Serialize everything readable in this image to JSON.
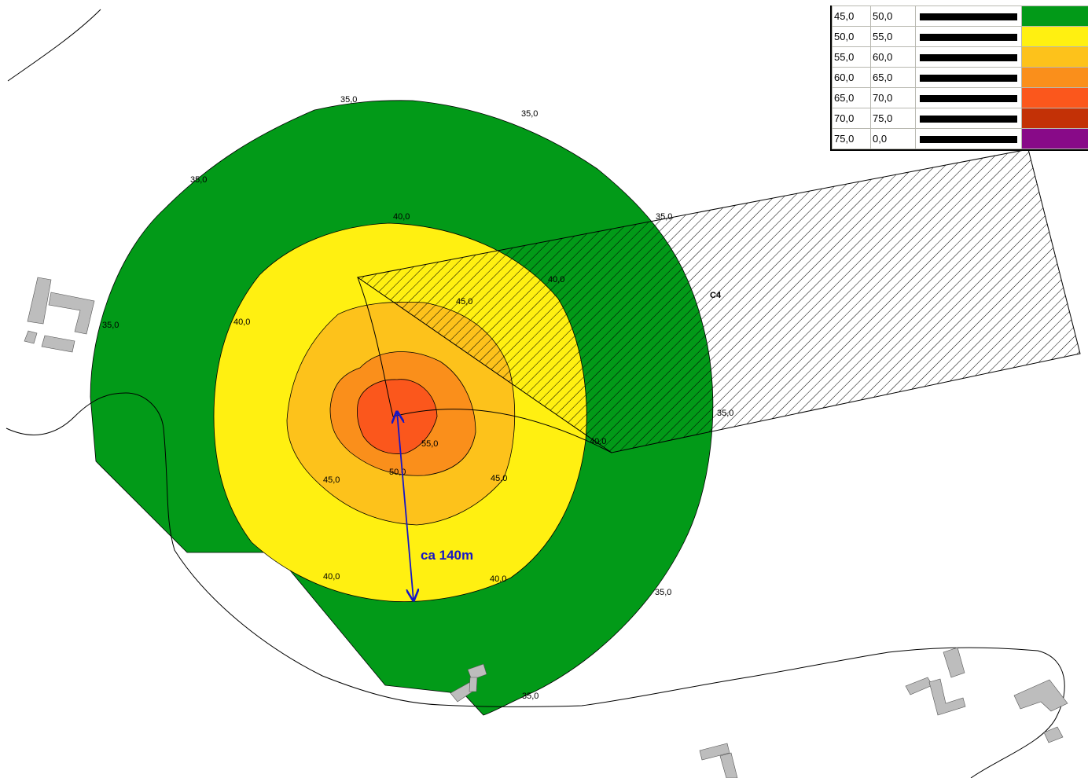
{
  "legend": {
    "rows": [
      {
        "from": "45,0",
        "to": "50,0",
        "color": "#029a18"
      },
      {
        "from": "50,0",
        "to": "55,0",
        "color": "#fff011"
      },
      {
        "from": "55,0",
        "to": "60,0",
        "color": "#fdc21b"
      },
      {
        "from": "60,0",
        "to": "65,0",
        "color": "#fa8f1b"
      },
      {
        "from": "65,0",
        "to": "70,0",
        "color": "#fb571c"
      },
      {
        "from": "70,0",
        "to": "75,0",
        "color": "#c33106"
      },
      {
        "from": "75,0",
        "to": "0,0",
        "color": "#880a88"
      }
    ]
  },
  "map": {
    "distance_annotation": "ca 140m",
    "area_label": "C4",
    "contour_labels": [
      "35,0",
      "35,0",
      "35,0",
      "35,0",
      "35,0",
      "35,0",
      "35,0",
      "35,0",
      "40,0",
      "40,0",
      "40,0",
      "40,0",
      "40,0",
      "40,0",
      "45,0",
      "45,0",
      "45,0",
      "50,0",
      "55,0"
    ],
    "zone_colors": {
      "green": "#029a18",
      "yellow": "#fff011",
      "orange_light": "#fdc21b",
      "orange": "#fa8f1b",
      "red": "#fb571c",
      "building": "#bdbdbd",
      "arrow": "#1515c8"
    }
  }
}
